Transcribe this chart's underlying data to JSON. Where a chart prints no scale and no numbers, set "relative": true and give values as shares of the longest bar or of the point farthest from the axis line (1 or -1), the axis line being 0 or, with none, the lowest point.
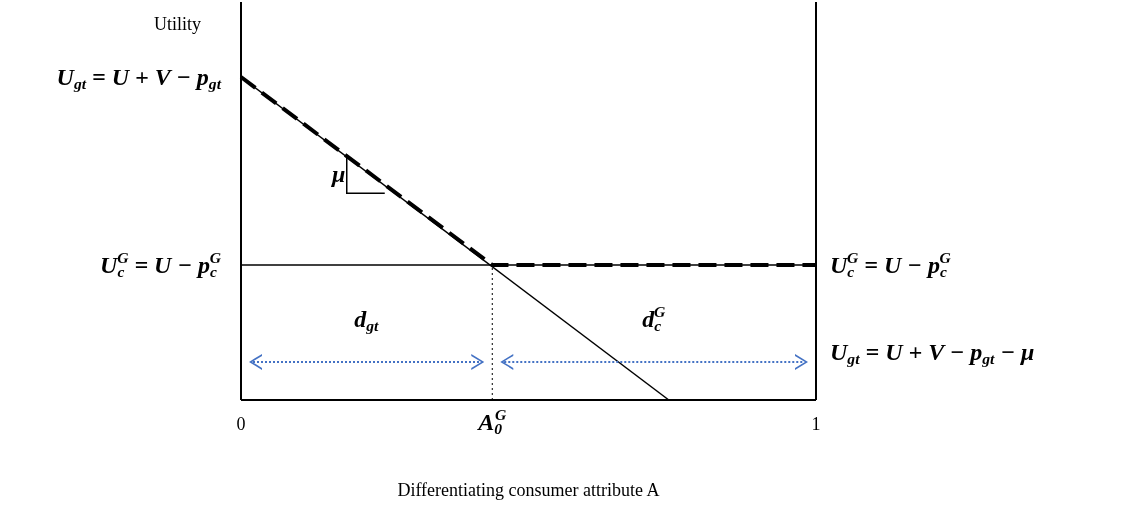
{
  "chart_data": {
    "type": "line",
    "relative": true,
    "ylabel": "Utility",
    "xlabel": "Differentiating consumer attribute A",
    "xlim": [
      0,
      1
    ],
    "xticks": [
      0,
      {
        "value": 0.437,
        "label": "A$_{0}$$^{G}$"
      },
      1
    ],
    "series": [
      {
        "color": "#000000",
        "x": [
          0,
          0.744
        ],
        "values": [
          1,
          0
        ]
      },
      {
        "color": "#000000",
        "x": [
          0,
          1
        ],
        "values": [
          0.418,
          0.418
        ]
      },
      {
        "color": "#000000",
        "x": [
          0,
          0.437,
          1
        ],
        "values": [
          1,
          0.418,
          0.418
        ],
        "line_style": "dashed"
      },
      {
        "color": "#000000",
        "x": [
          0.437,
          0.437
        ],
        "values": [
          0,
          0.418
        ],
        "line_style": "dotted"
      }
    ],
    "annotations": [
      "U$_{gt}$ = U + V − p$_{gt}$",
      "U$_{c}$$^{G}$ = U − p$_{c}$$^{G}$",
      "U$_{c}$$^{G}$ = U − p$_{c}$$^{G}$",
      "U$_{gt}$ = U + V − p$_{gt}$ − μ",
      "μ",
      "d$_{gt}$",
      "d$_{c}$$^{G}$"
    ]
  }
}
